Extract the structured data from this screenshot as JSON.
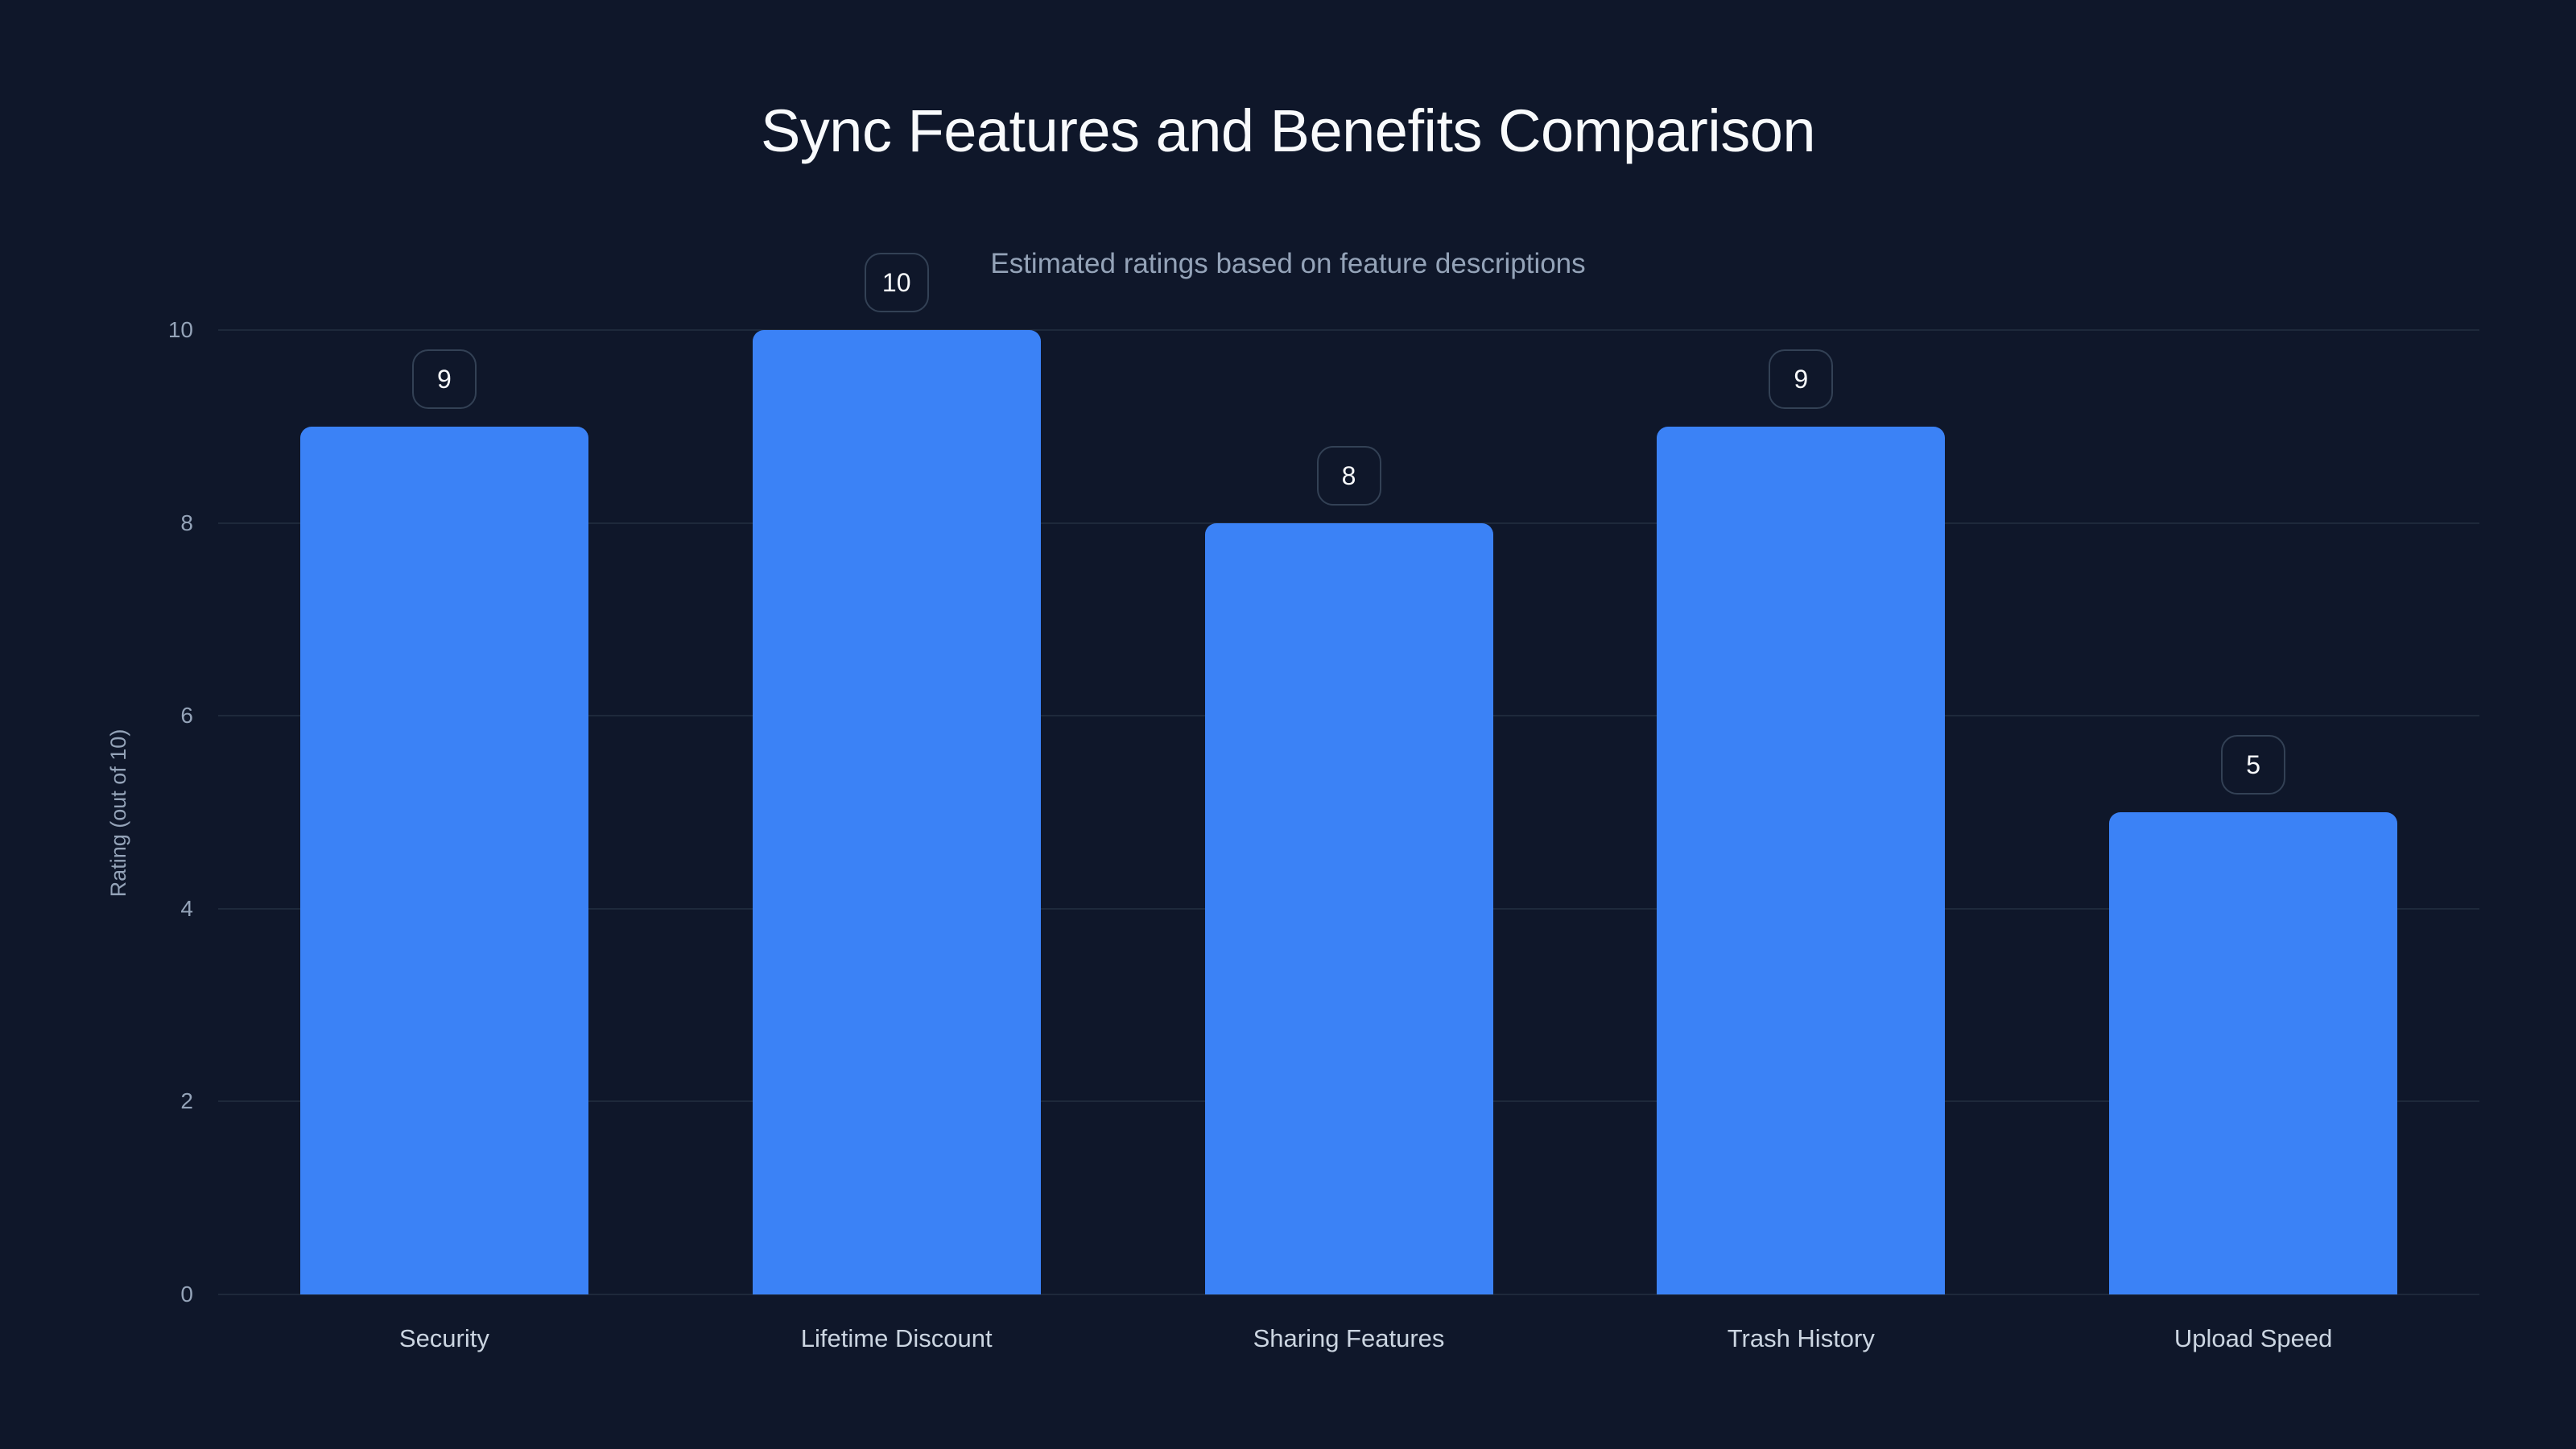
{
  "chart_data": {
    "type": "bar",
    "title": "Sync Features and Benefits Comparison",
    "subtitle": "Estimated ratings based on feature descriptions",
    "xlabel": "",
    "ylabel": "Rating (out of 10)",
    "categories": [
      "Security",
      "Lifetime Discount",
      "Sharing Features",
      "Trash History",
      "Upload Speed"
    ],
    "values": [
      9,
      10,
      8,
      9,
      5
    ],
    "ylim": [
      0,
      10
    ],
    "yticks": [
      0,
      2,
      4,
      6,
      8,
      10
    ],
    "grid": true,
    "legend": "none",
    "bar_color": "#3b82f6",
    "background_color": "#0f172a"
  }
}
